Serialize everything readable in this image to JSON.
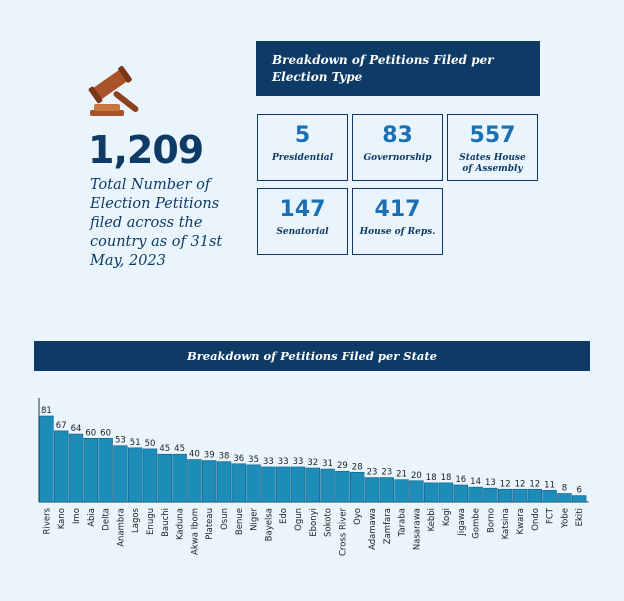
{
  "summary": {
    "total": "1,209",
    "caption": "Total Number of Election Petitions filed across the country as of 31st May, 2023"
  },
  "type_breakdown": {
    "title": "Breakdown of Petitions Filed per Election Type",
    "items": [
      {
        "value": "5",
        "label": "Presidential"
      },
      {
        "value": "83",
        "label": "Governorship"
      },
      {
        "value": "557",
        "label": "States House of Assembly"
      },
      {
        "value": "147",
        "label": "Senatorial"
      },
      {
        "value": "417",
        "label": "House of Reps."
      }
    ]
  },
  "icons": {
    "gavel": "gavel-icon"
  },
  "colors": {
    "navy": "#0e3b66",
    "bar": "#1e8cb8",
    "accent": "#1a6fb5",
    "background": "#eaf4fd",
    "gavel": "#a8532a"
  },
  "chart_data": {
    "type": "bar",
    "title": "Breakdown of Petitions Filed per State",
    "categories": [
      "Rivers",
      "Kano",
      "Imo",
      "Abia",
      "Delta",
      "Anambra",
      "Lagos",
      "Enugu",
      "Bauchi",
      "Kaduna",
      "Akwa Ibom",
      "Plateau",
      "Osun",
      "Benue",
      "Niger",
      "Bayelsa",
      "Edo",
      "Ogun",
      "Ebonyi",
      "Sokoto",
      "Cross River",
      "Oyo",
      "Adamawa",
      "Zamfara",
      "Taraba",
      "Nasarawa",
      "Kebbi",
      "Kogi",
      "Jigawa",
      "Gombe",
      "Borno",
      "Katsina",
      "Kwara",
      "Ondo",
      "FCT",
      "Yobe",
      "Ekiti"
    ],
    "values": [
      81,
      67,
      64,
      60,
      60,
      53,
      51,
      50,
      45,
      45,
      40,
      39,
      38,
      36,
      35,
      33,
      33,
      33,
      32,
      31,
      29,
      28,
      23,
      23,
      21,
      20,
      18,
      18,
      16,
      14,
      13,
      12,
      12,
      12,
      11,
      8,
      6
    ],
    "xlabel": "",
    "ylabel": "",
    "ylim": [
      0,
      81
    ],
    "grid": false,
    "data_labels": true
  }
}
